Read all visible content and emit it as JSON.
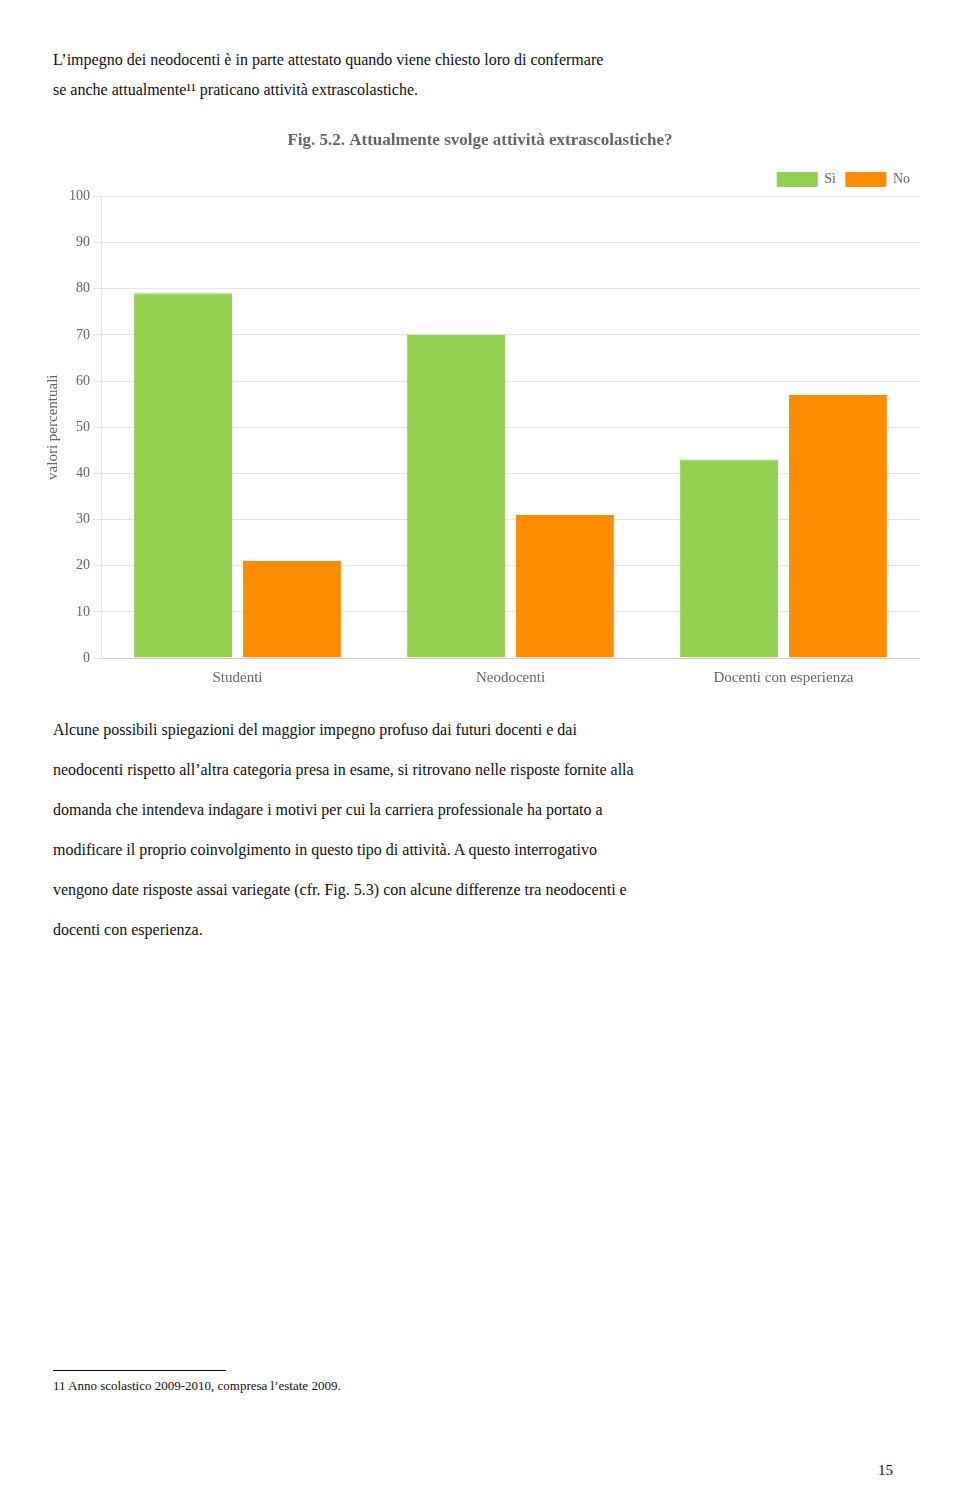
{
  "chart_data": {
    "type": "bar",
    "title": "Fig. 5.2. Attualmente svolge attività extrascolastiche?",
    "categories": [
      "Studenti",
      "Neodocenti",
      "Docenti con esperienza"
    ],
    "series": [
      {
        "name": "Sì",
        "color": "#92D050",
        "values": [
          79,
          70,
          43
        ]
      },
      {
        "name": "No",
        "color": "#FF8C00",
        "values": [
          21,
          31,
          57
        ]
      }
    ],
    "ylabel": "valori percentuali",
    "ylim": [
      0,
      100
    ],
    "yticks": [
      0,
      10,
      20,
      30,
      40,
      50,
      60,
      70,
      80,
      90,
      100
    ],
    "grid": true,
    "legend": "upper right",
    "annotations": [
      "L’impegno dei neodocenti è in parte attestato quando viene chiesto loro di confermare",
      "se anche attualmente¹¹ praticano attività extrascolastiche.",
      "Alcune possibili spiegazioni del maggior impegno profuso dai futuri docenti e dai",
      "neodocenti rispetto all’altra categoria presa in esame, si ritrovano nelle risposte fornite alla",
      "domanda che intendeva indagare i motivi per cui la carriera professionale ha portato a",
      "modificare il proprio coinvolgimento in questo tipo di attività. A questo interrogativo",
      "vengono date risposte assai variegate (cfr. Fig. 5.3) con alcune differenze tra neodocenti e",
      "docenti con esperienza.",
      "11 Anno scolastico 2009-2010, compresa l’estate 2009.",
      "15"
    ]
  }
}
